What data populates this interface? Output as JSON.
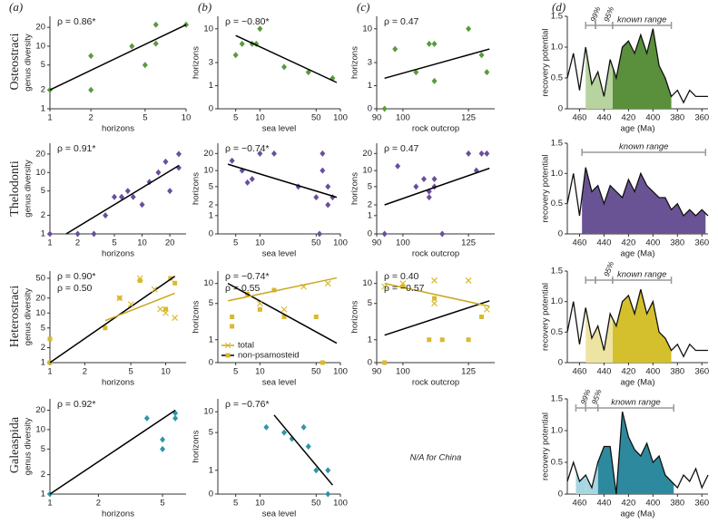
{
  "panel_labels": [
    "(a)",
    "(b)",
    "(c)",
    "(d)"
  ],
  "group_labels": [
    "Osteostraci",
    "Thelodonti",
    "Heterostraci",
    "Galeaspida"
  ],
  "na_note": "N/A for China",
  "chart_data": [
    {
      "type": "scatter",
      "xlabel": "horizons",
      "ylabel": "genus diversity",
      "xscale": "log",
      "yscale": "log",
      "xlim": [
        1,
        10
      ],
      "ylim": [
        1,
        30
      ],
      "xticks": [
        1,
        2,
        5,
        10
      ],
      "yticks": [
        1,
        2,
        5,
        10,
        20
      ],
      "series": [
        {
          "marker": "diamond",
          "color": "#5a9a3c",
          "x": [
            1,
            2,
            2,
            4,
            5,
            6,
            6,
            10
          ],
          "y": [
            2,
            2,
            7,
            10,
            5,
            11,
            22,
            22
          ],
          "fit": {
            "x": [
              1,
              10
            ],
            "y": [
              2,
              22
            ],
            "color": "#000000"
          },
          "annotation": "ρ = 0.86*"
        }
      ]
    },
    {
      "type": "scatter",
      "xlabel": "sea level",
      "ylabel": "horizons",
      "xscale": "log",
      "yscale": "log1p",
      "xlim": [
        3,
        100
      ],
      "ylim": [
        0,
        15
      ],
      "xticks": [
        5,
        10,
        50,
        100
      ],
      "yticks": [
        0,
        1,
        3,
        10
      ],
      "series": [
        {
          "marker": "diamond",
          "color": "#5a9a3c",
          "x": [
            5,
            6,
            8,
            9,
            10,
            20,
            40,
            80
          ],
          "y": [
            4,
            6,
            6,
            6,
            10,
            2.5,
            2,
            1.5
          ],
          "fit": {
            "x": [
              5,
              90
            ],
            "y": [
              8,
              1.2
            ],
            "color": "#000000"
          },
          "annotation": "ρ = −0.80*"
        }
      ]
    },
    {
      "type": "scatter",
      "xlabel": "rock outcrop",
      "ylabel": "horizons",
      "xscale": "linear",
      "yscale": "log1p",
      "xlim": [
        90,
        135
      ],
      "ylim": [
        0,
        15
      ],
      "xticks": [
        90,
        100,
        125
      ],
      "yticks": [
        0,
        1,
        3,
        10
      ],
      "series": [
        {
          "marker": "diamond",
          "color": "#5a9a3c",
          "x": [
            93,
            97,
            105,
            110,
            112,
            112,
            125,
            130,
            132
          ],
          "y": [
            0,
            5,
            2,
            6,
            6,
            1.3,
            10,
            4,
            2
          ],
          "fit": {
            "x": [
              93,
              133
            ],
            "y": [
              1.5,
              5
            ],
            "color": "#000000"
          },
          "annotation": "ρ = 0.47"
        }
      ]
    },
    {
      "type": "area",
      "xlabel": "age (Ma)",
      "ylabel": "recovery potential",
      "xlim": [
        470,
        355
      ],
      "ylim": [
        0,
        1.5
      ],
      "xticks": [
        460,
        440,
        420,
        400,
        380,
        360
      ],
      "yticks": [
        0,
        0.5,
        {
          "value": 1,
          "label": "1.0"
        },
        1.5
      ],
      "color": "#5a8f3c",
      "light_color": "#b7d39f",
      "x": [
        470,
        465,
        460,
        455,
        450,
        445,
        440,
        435,
        430,
        425,
        420,
        415,
        410,
        405,
        400,
        395,
        390,
        385,
        380,
        375,
        370,
        365,
        360,
        355
      ],
      "values": [
        0.5,
        0.9,
        0.3,
        1.0,
        0.4,
        0.6,
        0.2,
        0.8,
        0.5,
        1.0,
        1.1,
        0.9,
        1.2,
        0.9,
        1.3,
        0.7,
        0.5,
        0.2,
        0.3,
        0.1,
        0.3,
        0.2,
        0.2,
        0.2
      ],
      "ranges": [
        {
          "label": "known range",
          "x": [
            433,
            385
          ]
        },
        {
          "label": "95%",
          "x": [
            447,
            433
          ]
        },
        {
          "label": "99%",
          "x": [
            455,
            447
          ]
        }
      ]
    },
    {
      "type": "scatter",
      "xlabel": "horizons",
      "ylabel": "genus diversity",
      "xscale": "log",
      "yscale": "log",
      "xlim": [
        1,
        30
      ],
      "ylim": [
        1,
        30
      ],
      "xticks": [
        1,
        2,
        5,
        10,
        20
      ],
      "yticks": [
        1,
        2,
        5,
        10,
        20
      ],
      "series": [
        {
          "marker": "diamond",
          "color": "#6a4f9c",
          "x": [
            1,
            2,
            3,
            4,
            5,
            6,
            7,
            8,
            10,
            12,
            15,
            18,
            20,
            25,
            25
          ],
          "y": [
            1,
            1,
            1,
            2,
            4,
            4,
            5,
            4,
            3,
            7,
            10,
            15,
            5,
            20,
            12
          ],
          "fit": {
            "x": [
              1.5,
              25
            ],
            "y": [
              1,
              13
            ],
            "color": "#000000"
          },
          "annotation": "ρ = 0.91*"
        }
      ]
    },
    {
      "type": "scatter",
      "xlabel": "sea level",
      "ylabel": "horizons",
      "xscale": "log",
      "yscale": "log1p",
      "xlim": [
        3,
        100
      ],
      "ylim": [
        0,
        30
      ],
      "xticks": [
        5,
        10,
        50,
        100
      ],
      "yticks": [
        0,
        1,
        2,
        5,
        10,
        20
      ],
      "series": [
        {
          "marker": "diamond",
          "color": "#6a4f9c",
          "x": [
            4.5,
            6,
            7,
            8,
            10,
            15,
            30,
            50,
            55,
            60,
            60,
            70,
            70,
            80
          ],
          "y": [
            15,
            10,
            6,
            7,
            20,
            20,
            5,
            3,
            0,
            20,
            10,
            2,
            5,
            3
          ],
          "fit": {
            "x": [
              4,
              90
            ],
            "y": [
              13,
              3
            ],
            "color": "#000000"
          },
          "annotation": "ρ = −0.74*"
        }
      ]
    },
    {
      "type": "scatter",
      "xlabel": "rock outcrop",
      "ylabel": "horizons",
      "xscale": "linear",
      "yscale": "log1p",
      "xlim": [
        90,
        135
      ],
      "ylim": [
        0,
        30
      ],
      "xticks": [
        90,
        100,
        125
      ],
      "yticks": [
        0,
        1,
        2,
        5,
        10,
        20
      ],
      "series": [
        {
          "marker": "diamond",
          "color": "#6a4f9c",
          "x": [
            93,
            98,
            105,
            108,
            110,
            110,
            112,
            112,
            115,
            125,
            128,
            130,
            132
          ],
          "y": [
            0,
            12,
            5,
            7,
            3,
            4,
            7,
            5,
            0,
            20,
            10,
            20,
            20
          ],
          "fit": {
            "x": [
              93,
              133
            ],
            "y": [
              2,
              11
            ],
            "color": "#000000"
          },
          "annotation": "ρ = 0.47"
        }
      ]
    },
    {
      "type": "area",
      "xlabel": "age (Ma)",
      "ylabel": "recovery potential",
      "xlim": [
        470,
        355
      ],
      "ylim": [
        0,
        1.5
      ],
      "xticks": [
        460,
        440,
        420,
        400,
        380,
        360
      ],
      "yticks": [
        0,
        0.5,
        {
          "value": 1,
          "label": "1.0"
        },
        1.5
      ],
      "color": "#6a5394",
      "light_color": "#c2b4dc",
      "x": [
        470,
        465,
        460,
        455,
        450,
        445,
        440,
        435,
        430,
        425,
        420,
        415,
        410,
        405,
        400,
        395,
        390,
        385,
        380,
        375,
        370,
        365,
        360,
        355
      ],
      "values": [
        0.5,
        1.0,
        0.3,
        1.1,
        0.7,
        0.8,
        0.5,
        0.8,
        0.7,
        0.6,
        0.9,
        0.7,
        1.0,
        0.8,
        0.7,
        0.6,
        0.6,
        0.4,
        0.5,
        0.3,
        0.4,
        0.3,
        0.4,
        0.3
      ],
      "ranges": [
        {
          "label": "known range",
          "x": [
            458,
            357
          ]
        }
      ]
    },
    {
      "type": "scatter",
      "xlabel": "horizons",
      "ylabel": "genus diversity",
      "xscale": "log",
      "yscale": "log",
      "xlim": [
        1,
        15
      ],
      "ylim": [
        1,
        70
      ],
      "xticks": [
        1,
        2,
        5,
        10
      ],
      "yticks": [
        1,
        2,
        5,
        10,
        20,
        50
      ],
      "series": [
        {
          "marker": "square",
          "color": "#d9b92e",
          "x": [
            1,
            1,
            3,
            4,
            6,
            10,
            11,
            12
          ],
          "y": [
            1,
            3,
            5,
            20,
            45,
            12,
            50,
            40
          ],
          "fit": {
            "x": [
              1,
              12
            ],
            "y": [
              1,
              55
            ],
            "color": "#000000"
          },
          "annotation": "ρ = 0.90*"
        },
        {
          "marker": "cross",
          "color": "#d9b92e",
          "x": [
            4,
            5,
            6,
            8,
            9,
            10,
            12
          ],
          "y": [
            20,
            15,
            50,
            30,
            12,
            10,
            8
          ],
          "fit": {
            "x": [
              3,
              12
            ],
            "y": [
              7,
              25
            ],
            "color": "#c9a81e"
          },
          "annotation": "ρ = 0.50"
        }
      ]
    },
    {
      "type": "scatter",
      "xlabel": "sea level",
      "ylabel": "horizons",
      "xscale": "log",
      "yscale": "log1p",
      "xlim": [
        3,
        100
      ],
      "ylim": [
        0,
        15
      ],
      "xticks": [
        5,
        10,
        50,
        100
      ],
      "yticks": [
        0,
        1,
        5,
        10
      ],
      "legend": "lower left",
      "series": [
        {
          "name": "non-psamosteid",
          "marker": "square",
          "color": "#d9b92e",
          "x": [
            4.5,
            4.5,
            7,
            10,
            15,
            20,
            50,
            60
          ],
          "y": [
            2,
            3,
            7,
            4,
            8,
            3,
            3,
            0
          ],
          "fit": {
            "x": [
              4,
              90
            ],
            "y": [
              10,
              0.8
            ],
            "color": "#000000"
          },
          "annotation": "ρ = −0.74*"
        },
        {
          "name": "total",
          "marker": "cross",
          "color": "#d9b92e",
          "x": [
            10,
            20,
            35,
            70
          ],
          "y": [
            5,
            4,
            9,
            10
          ],
          "fit": {
            "x": [
              4,
              90
            ],
            "y": [
              5.5,
              12
            ],
            "color": "#c9a81e"
          },
          "annotation": "ρ = 0.55"
        }
      ]
    },
    {
      "type": "scatter",
      "xlabel": "rock outcrop",
      "ylabel": "horizons",
      "xscale": "linear",
      "yscale": "log1p",
      "xlim": [
        90,
        135
      ],
      "ylim": [
        0,
        15
      ],
      "xticks": [
        90,
        100,
        125
      ],
      "yticks": [
        0,
        1,
        5,
        10
      ],
      "series": [
        {
          "marker": "square",
          "color": "#d9b92e",
          "x": [
            93,
            100,
            110,
            112,
            115,
            125,
            130
          ],
          "y": [
            0,
            9,
            1,
            6,
            1,
            1,
            3
          ],
          "fit": {
            "x": [
              93,
              133
            ],
            "y": [
              1.3,
              5.5
            ],
            "color": "#000000"
          },
          "annotation": "ρ = 0.40"
        },
        {
          "marker": "cross",
          "color": "#d9b92e",
          "x": [
            93,
            100,
            112,
            112,
            125,
            132
          ],
          "y": [
            9,
            10,
            11,
            5,
            11,
            4
          ],
          "fit": {
            "x": [
              93,
              133
            ],
            "y": [
              10,
              4.5
            ],
            "color": "#c9a81e"
          },
          "annotation": "ρ = −0.57"
        }
      ]
    },
    {
      "type": "area",
      "xlabel": "age (Ma)",
      "ylabel": "recovery potential",
      "xlim": [
        470,
        355
      ],
      "ylim": [
        0,
        1.5
      ],
      "xticks": [
        460,
        440,
        420,
        400,
        380,
        360
      ],
      "yticks": [
        0,
        0.5,
        {
          "value": 1,
          "label": "1.0"
        },
        1.5
      ],
      "color": "#d4c02c",
      "light_color": "#ede4a4",
      "x": [
        470,
        465,
        460,
        455,
        450,
        445,
        440,
        435,
        430,
        425,
        420,
        415,
        410,
        405,
        400,
        395,
        390,
        385,
        380,
        375,
        370,
        365,
        360,
        355
      ],
      "values": [
        0.5,
        1.0,
        0.3,
        0.9,
        0.4,
        0.6,
        0.2,
        0.8,
        0.6,
        1.0,
        1.1,
        0.8,
        1.2,
        0.8,
        1.0,
        0.5,
        0.4,
        0.2,
        0.3,
        0.1,
        0.3,
        0.2,
        0.2,
        0.2
      ],
      "ranges": [
        {
          "label": "known range",
          "x": [
            433,
            385
          ]
        },
        {
          "label": "95%",
          "x": [
            447,
            433
          ]
        },
        {
          "x": [
            455,
            447
          ]
        }
      ]
    },
    {
      "type": "scatter",
      "xlabel": "horizons",
      "ylabel": "genus diversity",
      "xscale": "log",
      "yscale": "log",
      "xlim": [
        1,
        7
      ],
      "ylim": [
        1,
        30
      ],
      "xticks": [
        1,
        2,
        5
      ],
      "yticks": [
        1,
        2,
        5,
        10,
        20
      ],
      "series": [
        {
          "marker": "diamond",
          "color": "#2e96a8",
          "x": [
            1,
            4,
            5,
            5,
            6,
            6
          ],
          "y": [
            1,
            15,
            5,
            7,
            15,
            18
          ],
          "fit": {
            "x": [
              1,
              6
            ],
            "y": [
              1,
              20
            ],
            "color": "#000000"
          },
          "annotation": "ρ = 0.92*"
        }
      ]
    },
    {
      "type": "scatter",
      "xlabel": "sea level",
      "ylabel": "horizons",
      "xscale": "log",
      "yscale": "log1p",
      "xlim": [
        3,
        100
      ],
      "ylim": [
        0,
        15
      ],
      "xticks": [
        5,
        10,
        50,
        100
      ],
      "yticks": [
        0,
        1,
        5,
        10
      ],
      "series": [
        {
          "marker": "diamond",
          "color": "#2e96a8",
          "x": [
            12,
            20,
            25,
            35,
            40,
            50,
            70,
            70
          ],
          "y": [
            6,
            5,
            4,
            6,
            3,
            1,
            1,
            0
          ],
          "fit": {
            "x": [
              15,
              80
            ],
            "y": [
              9,
              0.3
            ],
            "color": "#000000"
          },
          "annotation": "ρ = −0.76*"
        }
      ]
    },
    {
      "type": "area",
      "xlabel": "age (Ma)",
      "ylabel": "recovery potential",
      "xlim": [
        470,
        355
      ],
      "ylim": [
        0,
        1.5
      ],
      "xticks": [
        460,
        440,
        420,
        400,
        380,
        360
      ],
      "yticks": [
        0,
        0.5,
        {
          "value": 1,
          "label": "1.0"
        },
        1.5
      ],
      "color": "#2d8a9e",
      "light_color": "#a7d6e0",
      "x": [
        470,
        465,
        460,
        455,
        450,
        445,
        440,
        435,
        430,
        425,
        420,
        415,
        410,
        405,
        400,
        395,
        390,
        385,
        380,
        375,
        370,
        365,
        360,
        355
      ],
      "values": [
        0.2,
        0.5,
        0.2,
        0.3,
        0.1,
        0.5,
        0.75,
        0.75,
        0,
        1.3,
        0.9,
        0.7,
        0.6,
        0.8,
        0.5,
        0.6,
        0.3,
        0.2,
        0.1,
        0.3,
        0.2,
        0.4,
        0.1,
        0.3
      ],
      "ranges": [
        {
          "label": "known range",
          "x": [
            445,
            383
          ]
        },
        {
          "label": "95%",
          "x": [
            455,
            445
          ]
        },
        {
          "label": "99%",
          "x": [
            463,
            455
          ]
        }
      ]
    }
  ]
}
